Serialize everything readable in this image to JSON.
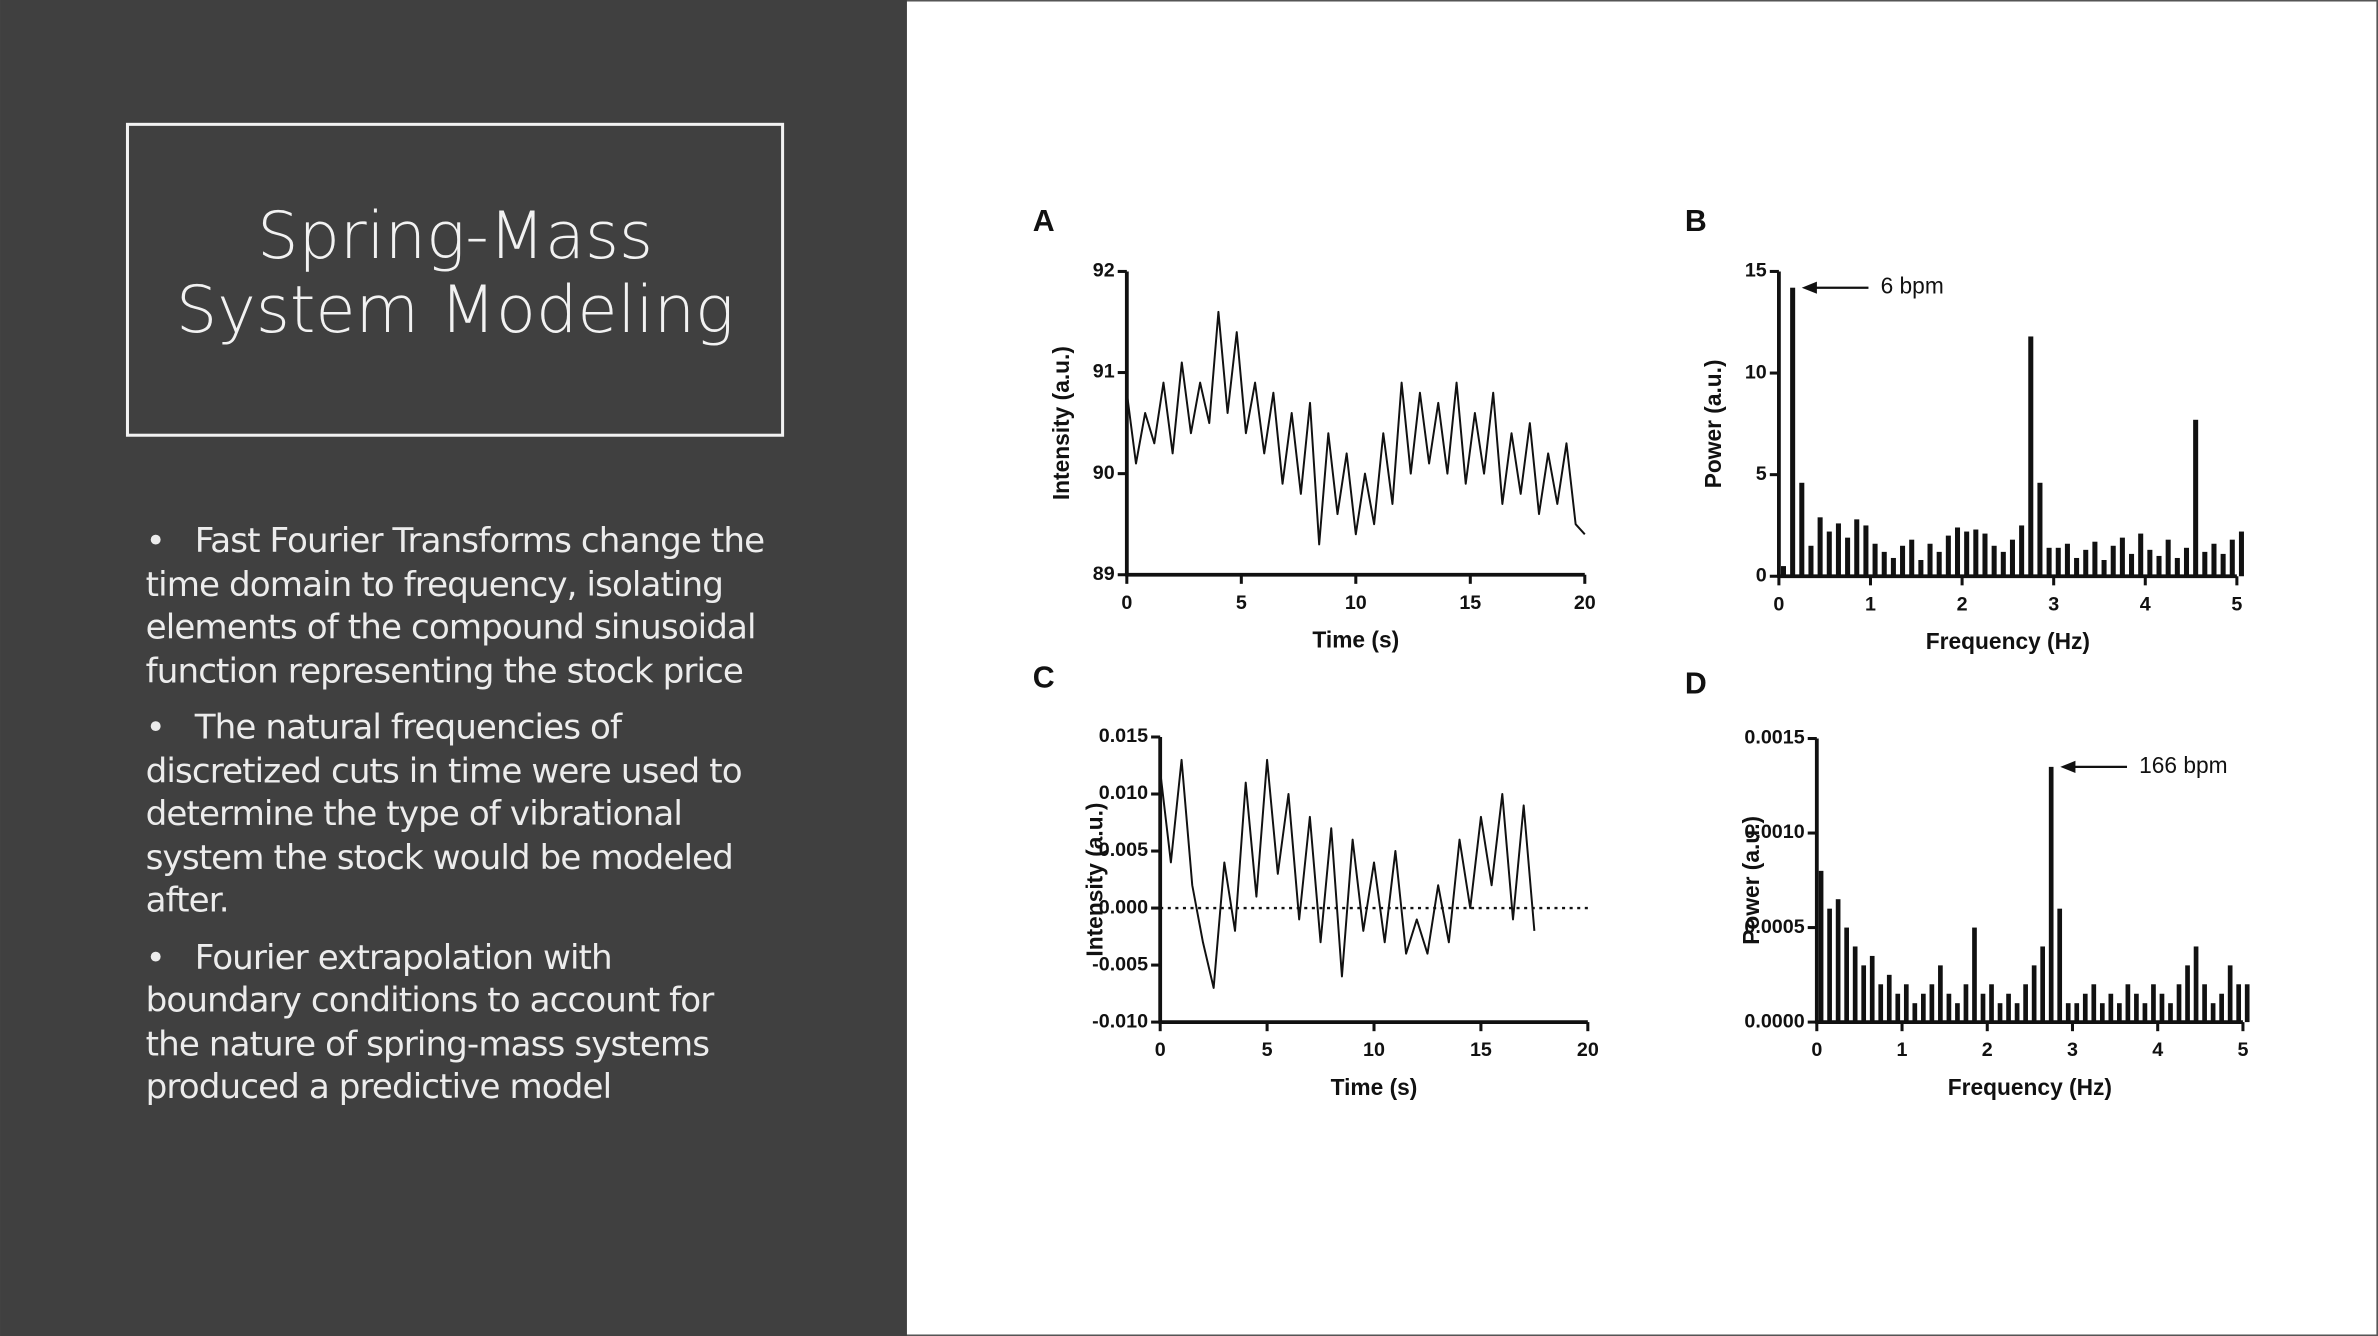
{
  "slide": {
    "title": "Spring-Mass System Modeling",
    "bullets": [
      "Fast Fourier Transforms change the time domain to frequency, isolating elements of the compound sinusoidal function representing the stock price",
      "The natural frequencies of discretized cuts in time were used to determine the type of vibrational system the stock would be modeled after.",
      "Fourier extrapolation with boundary conditions to account for the nature of spring-mass systems produced a predictive model"
    ]
  },
  "chart_data": [
    {
      "type": "line",
      "panel": "A",
      "xlabel": "Time (s)",
      "ylabel": "Intensity (a.u.)",
      "color": "#111111",
      "x": [
        0,
        0.4,
        0.8,
        1.2,
        1.6,
        2,
        2.4,
        2.8,
        3.2,
        3.6,
        4,
        4.4,
        4.8,
        5.2,
        5.6,
        6,
        6.4,
        6.8,
        7.2,
        7.6,
        8,
        8.4,
        8.8,
        9.2,
        9.6,
        10,
        10.4,
        10.8,
        11.2,
        11.6,
        12,
        12.4,
        12.8,
        13.2,
        13.6,
        14,
        14.4,
        14.8,
        15.2,
        15.6,
        16,
        16.4,
        16.8,
        17.2,
        17.6,
        18,
        18.4,
        18.8,
        19.2,
        19.6,
        20
      ],
      "values": [
        90.8,
        90.1,
        90.6,
        90.3,
        90.9,
        90.2,
        91.1,
        90.4,
        90.9,
        90.5,
        91.6,
        90.6,
        91.4,
        90.4,
        90.9,
        90.2,
        90.8,
        89.9,
        90.6,
        89.8,
        90.7,
        89.3,
        90.4,
        89.6,
        90.2,
        89.4,
        90.0,
        89.5,
        90.4,
        89.7,
        90.9,
        90.0,
        90.8,
        90.1,
        90.7,
        90.0,
        90.9,
        89.9,
        90.6,
        90.0,
        90.8,
        89.7,
        90.4,
        89.8,
        90.5,
        89.6,
        90.2,
        89.7,
        90.3,
        89.5,
        89.4
      ],
      "xlim": [
        0,
        20
      ],
      "xticks": [
        0,
        5,
        10,
        15,
        20
      ],
      "ylim": [
        89,
        92
      ],
      "yticks": [
        89,
        90,
        91,
        92
      ]
    },
    {
      "type": "bar",
      "panel": "B",
      "xlabel": "Frequency (Hz)",
      "ylabel": "Power (a.u.)",
      "color": "#111111",
      "annotation": "6 bpm",
      "x": [
        0,
        0.1,
        0.2,
        0.3,
        0.4,
        0.5,
        0.6,
        0.7,
        0.8,
        0.9,
        1,
        1.1,
        1.2,
        1.3,
        1.4,
        1.5,
        1.6,
        1.7,
        1.8,
        1.9,
        2,
        2.1,
        2.2,
        2.3,
        2.4,
        2.5,
        2.6,
        2.7,
        2.8,
        2.9,
        3,
        3.1,
        3.2,
        3.3,
        3.4,
        3.5,
        3.6,
        3.7,
        3.8,
        3.9,
        4,
        4.1,
        4.2,
        4.3,
        4.4,
        4.5,
        4.6,
        4.7,
        4.8,
        4.9,
        5
      ],
      "values": [
        0.5,
        14.2,
        4.6,
        1.5,
        2.9,
        2.2,
        2.6,
        1.9,
        2.8,
        2.5,
        1.6,
        1.2,
        0.9,
        1.5,
        1.8,
        0.8,
        1.6,
        1.2,
        2.0,
        2.4,
        2.2,
        2.3,
        2.1,
        1.5,
        1.2,
        1.8,
        2.5,
        11.8,
        4.6,
        1.4,
        1.4,
        1.6,
        0.9,
        1.3,
        1.7,
        0.8,
        1.5,
        1.9,
        1.1,
        2.1,
        1.3,
        1.0,
        1.8,
        0.9,
        1.4,
        7.7,
        1.2,
        1.6,
        1.1,
        1.8,
        2.2
      ],
      "xlim": [
        0,
        5
      ],
      "xticks": [
        0,
        1,
        2,
        3,
        4,
        5
      ],
      "ylim": [
        0,
        15
      ],
      "yticks": [
        0,
        5,
        10,
        15
      ]
    },
    {
      "type": "line",
      "panel": "C",
      "xlabel": "Time (s)",
      "ylabel": "Intensity (a.u.)",
      "color": "#111111",
      "zero_line": true,
      "x": [
        0,
        0.5,
        1,
        1.5,
        2,
        2.5,
        3,
        3.5,
        4,
        4.5,
        5,
        5.5,
        6,
        6.5,
        7,
        7.5,
        8,
        8.5,
        9,
        9.5,
        10,
        10.5,
        11,
        11.5,
        12,
        12.5,
        13,
        13.5,
        14,
        14.5,
        15,
        15.5,
        16,
        16.5,
        17,
        17.5
      ],
      "values": [
        0.012,
        0.004,
        0.013,
        0.002,
        -0.003,
        -0.007,
        0.004,
        -0.002,
        0.011,
        0.001,
        0.013,
        0.003,
        0.01,
        -0.001,
        0.008,
        -0.003,
        0.007,
        -0.006,
        0.006,
        -0.002,
        0.004,
        -0.003,
        0.005,
        -0.004,
        -0.001,
        -0.004,
        0.002,
        -0.003,
        0.006,
        0.0,
        0.008,
        0.002,
        0.01,
        -0.001,
        0.009,
        -0.002
      ],
      "xlim": [
        0,
        20
      ],
      "xticks": [
        0,
        5,
        10,
        15,
        20
      ],
      "ylim": [
        -0.01,
        0.015
      ],
      "yticks": [
        {
          "value": -0.01,
          "label": "-0.010"
        },
        -0.005,
        {
          "value": 0,
          "label": "0.000"
        },
        0.005,
        {
          "value": 0.01,
          "label": "0.010"
        },
        0.015
      ]
    },
    {
      "type": "bar",
      "panel": "D",
      "xlabel": "Frequency (Hz)",
      "ylabel": "Power (a.u.)",
      "color": "#111111",
      "annotation": "166 bpm",
      "x": [
        0,
        0.1,
        0.2,
        0.3,
        0.4,
        0.5,
        0.6,
        0.7,
        0.8,
        0.9,
        1,
        1.1,
        1.2,
        1.3,
        1.4,
        1.5,
        1.6,
        1.7,
        1.8,
        1.9,
        2,
        2.1,
        2.2,
        2.3,
        2.4,
        2.5,
        2.6,
        2.7,
        2.8,
        2.9,
        3,
        3.1,
        3.2,
        3.3,
        3.4,
        3.5,
        3.6,
        3.7,
        3.8,
        3.9,
        4,
        4.1,
        4.2,
        4.3,
        4.4,
        4.5,
        4.6,
        4.7,
        4.8,
        4.9,
        5
      ],
      "values": [
        0.0008,
        0.0006,
        0.00065,
        0.0005,
        0.0004,
        0.0003,
        0.00035,
        0.0002,
        0.00025,
        0.00015,
        0.0002,
        0.0001,
        0.00015,
        0.0002,
        0.0003,
        0.00015,
        0.0001,
        0.0002,
        0.0005,
        0.00015,
        0.0002,
        0.0001,
        0.00015,
        0.0001,
        0.0002,
        0.0003,
        0.0004,
        0.00135,
        0.0006,
        0.0001,
        0.0001,
        0.00015,
        0.0002,
        0.0001,
        0.00015,
        0.0001,
        0.0002,
        0.00015,
        0.0001,
        0.0002,
        0.00015,
        0.0001,
        0.0002,
        0.0003,
        0.0004,
        0.0002,
        0.0001,
        0.00015,
        0.0003,
        0.0002,
        0.0002
      ],
      "xlim": [
        0,
        5
      ],
      "xticks": [
        0,
        1,
        2,
        3,
        4,
        5
      ],
      "ylim": [
        0,
        0.0015
      ],
      "yticks": [
        {
          "value": 0,
          "label": "0.0000"
        },
        0.0005,
        {
          "value": 0.001,
          "label": "0.0010"
        },
        0.0015
      ]
    }
  ]
}
